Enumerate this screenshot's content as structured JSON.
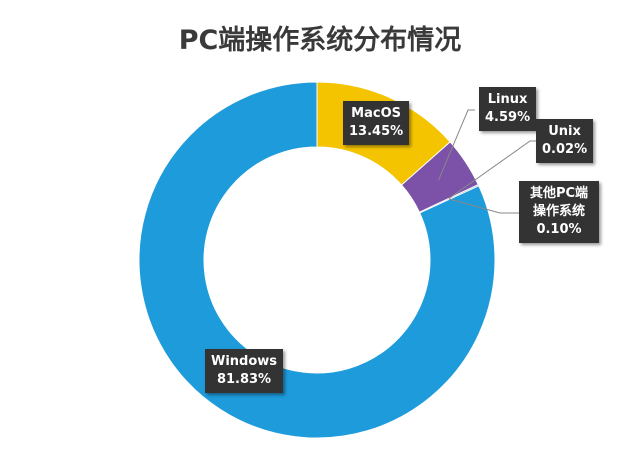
{
  "chart_data": {
    "type": "pie",
    "donut": true,
    "title": "PC端操作系统分布情况",
    "legend": "none",
    "slices": [
      {
        "label": "MacOS",
        "value": 13.45,
        "display": "13.45%",
        "color": "#F5C400"
      },
      {
        "label": "Linux",
        "value": 4.59,
        "display": "4.59%",
        "color": "#7B52A8"
      },
      {
        "label": "Unix",
        "value": 0.02,
        "display": "0.02%",
        "color": "#7B52A8"
      },
      {
        "label": "其他PC端操作系统",
        "value": 0.1,
        "display": "0.10%",
        "color": "#8FA0B8"
      },
      {
        "label": "Windows",
        "value": 81.83,
        "display": "81.83%",
        "color": "#1E9BDB"
      }
    ]
  }
}
